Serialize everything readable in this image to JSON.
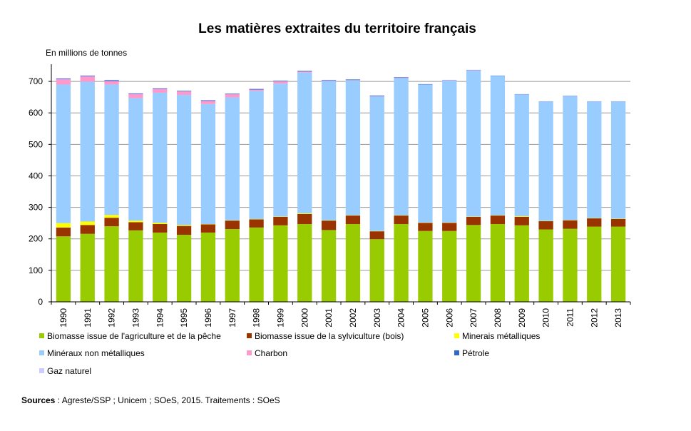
{
  "chart_data": {
    "type": "bar",
    "stacked": true,
    "title": "Les matières extraites du territoire français",
    "ylabel": "En millions de tonnes",
    "xlabel": "",
    "ylim": [
      0,
      750
    ],
    "yticks": [
      0,
      100,
      200,
      300,
      400,
      500,
      600,
      700
    ],
    "grid": true,
    "legend_position": "bottom",
    "categories": [
      "1990",
      "1991",
      "1992",
      "1993",
      "1994",
      "1995",
      "1996",
      "1997",
      "1998",
      "1999",
      "2000",
      "2001",
      "2002",
      "2003",
      "2004",
      "2005",
      "2006",
      "2007",
      "2008",
      "2009",
      "2010",
      "2011",
      "2012",
      "2013"
    ],
    "series": [
      {
        "name": "Biomasse issue de l'agriculture et de la pêche",
        "color": "#99cc00",
        "values": [
          208,
          216,
          240,
          227,
          220,
          213,
          220,
          231,
          236,
          243,
          247,
          228,
          247,
          199,
          247,
          225,
          225,
          244,
          247,
          243,
          230,
          232,
          239,
          239
        ]
      },
      {
        "name": "Biomasse issue de la sylviculture (bois)",
        "color": "#993300",
        "values": [
          28,
          28,
          27,
          26,
          27,
          28,
          26,
          27,
          26,
          27,
          32,
          30,
          27,
          25,
          27,
          26,
          26,
          26,
          27,
          27,
          26,
          27,
          26,
          24
        ]
      },
      {
        "name": "Minerais métalliques",
        "color": "#ffff00",
        "values": [
          14,
          11,
          9,
          5,
          4,
          3,
          1,
          1,
          1,
          1,
          2,
          1,
          1,
          1,
          1,
          1,
          1,
          1,
          1,
          2,
          1,
          1,
          1,
          1
        ]
      },
      {
        "name": "Minéraux non métalliques",
        "color": "#99ccff",
        "values": [
          440,
          444,
          414,
          389,
          413,
          413,
          381,
          390,
          407,
          422,
          447,
          442,
          428,
          427,
          435,
          438,
          450,
          463,
          442,
          386,
          378,
          393,
          369,
          371
        ]
      },
      {
        "name": "Charbon",
        "color": "#ff99cc",
        "values": [
          17,
          17,
          11,
          13,
          12,
          11,
          10,
          10,
          4,
          7,
          3,
          1,
          1,
          1,
          1,
          0,
          1,
          1,
          0,
          0,
          0,
          0,
          0,
          0
        ]
      },
      {
        "name": "Pétrole",
        "color": "#3366cc",
        "values": [
          2,
          2,
          3,
          2,
          2,
          2,
          2,
          2,
          2,
          2,
          2,
          2,
          2,
          2,
          2,
          1,
          1,
          1,
          1,
          1,
          1,
          1,
          1,
          1
        ]
      },
      {
        "name": "Gaz naturel",
        "color": "#ccccff",
        "values": [
          1,
          1,
          1,
          1,
          1,
          1,
          1,
          1,
          1,
          1,
          1,
          1,
          1,
          1,
          1,
          1,
          1,
          1,
          1,
          1,
          1,
          1,
          1,
          1
        ]
      }
    ]
  },
  "source": {
    "label": "Sources",
    "text": " : Agreste/SSP ; Unicem ; SOeS, 2015. Traitements : SOeS"
  }
}
